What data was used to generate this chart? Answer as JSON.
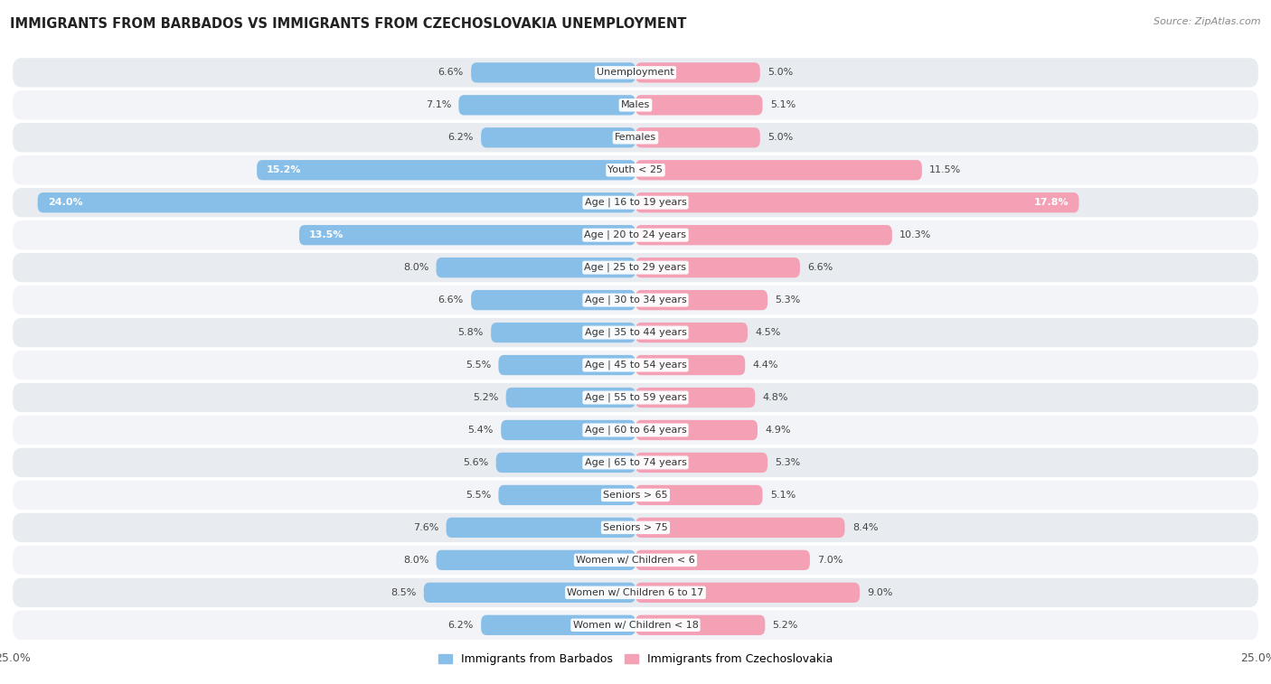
{
  "title": "IMMIGRANTS FROM BARBADOS VS IMMIGRANTS FROM CZECHOSLOVAKIA UNEMPLOYMENT",
  "source": "Source: ZipAtlas.com",
  "categories": [
    "Unemployment",
    "Males",
    "Females",
    "Youth < 25",
    "Age | 16 to 19 years",
    "Age | 20 to 24 years",
    "Age | 25 to 29 years",
    "Age | 30 to 34 years",
    "Age | 35 to 44 years",
    "Age | 45 to 54 years",
    "Age | 55 to 59 years",
    "Age | 60 to 64 years",
    "Age | 65 to 74 years",
    "Seniors > 65",
    "Seniors > 75",
    "Women w/ Children < 6",
    "Women w/ Children 6 to 17",
    "Women w/ Children < 18"
  ],
  "barbados": [
    6.6,
    7.1,
    6.2,
    15.2,
    24.0,
    13.5,
    8.0,
    6.6,
    5.8,
    5.5,
    5.2,
    5.4,
    5.6,
    5.5,
    7.6,
    8.0,
    8.5,
    6.2
  ],
  "czechoslovakia": [
    5.0,
    5.1,
    5.0,
    11.5,
    17.8,
    10.3,
    6.6,
    5.3,
    4.5,
    4.4,
    4.8,
    4.9,
    5.3,
    5.1,
    8.4,
    7.0,
    9.0,
    5.2
  ],
  "barbados_color": "#88bfe8",
  "czechoslovakia_color": "#f4a0b5",
  "row_color_odd": "#e8ecf0",
  "row_color_even": "#f2f4f7",
  "axis_limit": 25.0,
  "legend_barbados": "Immigrants from Barbados",
  "legend_czechoslovakia": "Immigrants from Czechoslovakia",
  "label_white_threshold": 12.0
}
